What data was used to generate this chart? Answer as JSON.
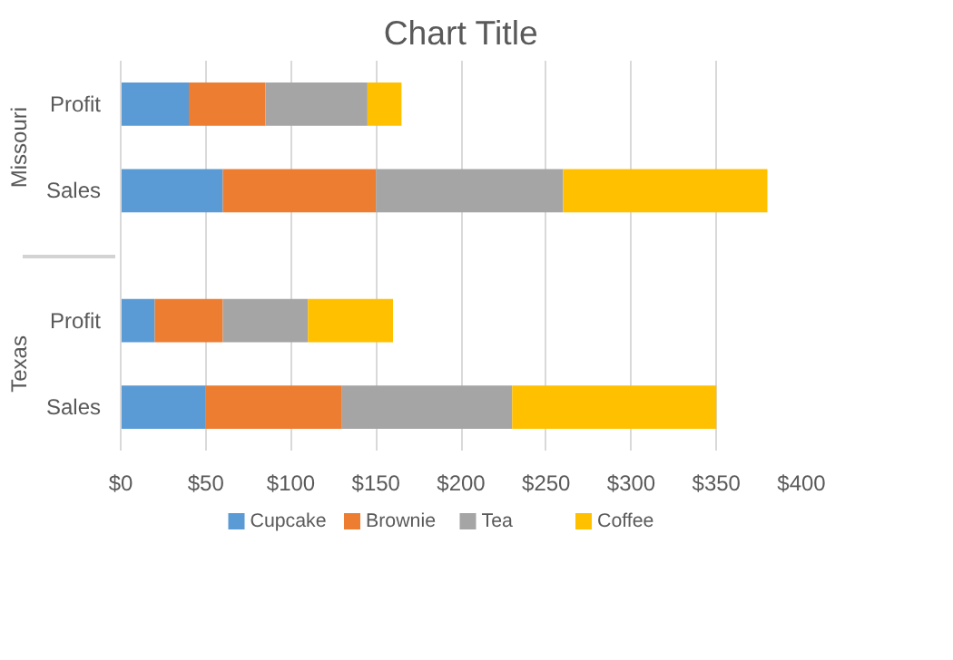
{
  "chart_data": {
    "type": "bar",
    "orientation": "horizontal",
    "stacked": true,
    "title": "Chart Title",
    "categories": [
      "Profit",
      "Sales",
      "Profit",
      "Sales"
    ],
    "annotations": [
      "Missouri",
      "Texas"
    ],
    "series": [
      {
        "name": "Cupcake",
        "color": "#5b9bd5",
        "values": [
          40,
          60,
          20,
          50
        ]
      },
      {
        "name": "Brownie",
        "color": "#ed7d31",
        "values": [
          45,
          90,
          40,
          80
        ]
      },
      {
        "name": "Tea",
        "color": "#a5a5a5",
        "values": [
          60,
          110,
          50,
          100
        ]
      },
      {
        "name": "Coffee",
        "color": "#ffc000",
        "values": [
          20,
          120,
          50,
          120
        ]
      }
    ],
    "xlim": [
      0,
      400
    ],
    "xticks": [
      {
        "value": 0,
        "label": "$0"
      },
      {
        "value": 50,
        "label": "$50"
      },
      {
        "value": 100,
        "label": "$100"
      },
      {
        "value": 150,
        "label": "$150"
      },
      {
        "value": 200,
        "label": "$200"
      },
      {
        "value": 250,
        "label": "$250"
      },
      {
        "value": 300,
        "label": "$300"
      },
      {
        "value": 350,
        "label": "$350"
      },
      {
        "value": 400,
        "label": "$400"
      }
    ],
    "grid": "x",
    "legend": "bottom"
  }
}
